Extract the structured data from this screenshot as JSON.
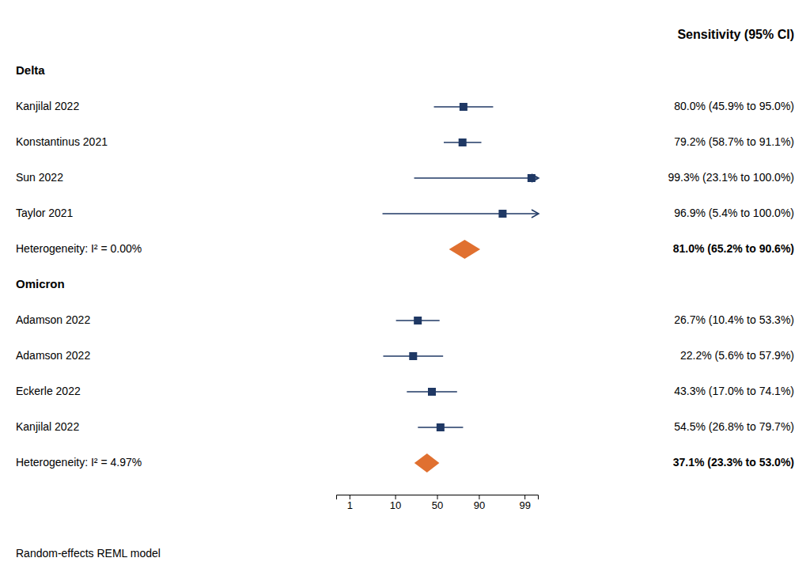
{
  "chart_data": {
    "type": "forest",
    "title": "Sensitivity (95% CI)",
    "xlim": [
      0.5,
      99.5
    ],
    "xticks": [
      1,
      10,
      50,
      90,
      99
    ],
    "annotations": [
      "Random-effects REML model"
    ],
    "series": [
      {
        "name": "Delta",
        "color": "#1f3864",
        "categories": [
          "Kanjilal 2022",
          "Konstantinus 2021",
          "Sun 2022",
          "Taylor 2021"
        ],
        "values": [
          80.0,
          79.2,
          99.3,
          96.9
        ],
        "lo": [
          45.9,
          58.7,
          23.1,
          5.4
        ],
        "hi": [
          95.0,
          91.1,
          100.0,
          100.0
        ],
        "value_labels": [
          "80.0% (45.9% to 95.0%)",
          "79.2% (58.7% to 91.1%)",
          "99.3% (23.1% to 100.0%)",
          "96.9% (5.4% to 100.0%)"
        ],
        "pooled": {
          "label": "Heterogeneity: I² = 0.00%",
          "value": 81.0,
          "lo": 65.2,
          "hi": 90.6,
          "value_label": "81.0% (65.2% to 90.6%)",
          "color": "#e07030"
        }
      },
      {
        "name": "Omicron",
        "color": "#1f3864",
        "categories": [
          "Adamson 2022",
          "Adamson 2022",
          "Eckerle 2022",
          "Kanjilal 2022"
        ],
        "values": [
          26.7,
          22.2,
          43.3,
          54.5
        ],
        "lo": [
          10.4,
          5.6,
          17.0,
          26.8
        ],
        "hi": [
          53.3,
          57.9,
          74.1,
          79.7
        ],
        "value_labels": [
          "26.7% (10.4% to 53.3%)",
          "22.2% (5.6% to 57.9%)",
          "43.3% (17.0% to 74.1%)",
          "54.5% (26.8% to 79.7%)"
        ],
        "pooled": {
          "label": "Heterogeneity: I² = 4.97%",
          "value": 37.1,
          "lo": 23.3,
          "hi": 53.0,
          "value_label": "37.1% (23.3% to 53.0%)",
          "color": "#e07030"
        }
      }
    ]
  }
}
